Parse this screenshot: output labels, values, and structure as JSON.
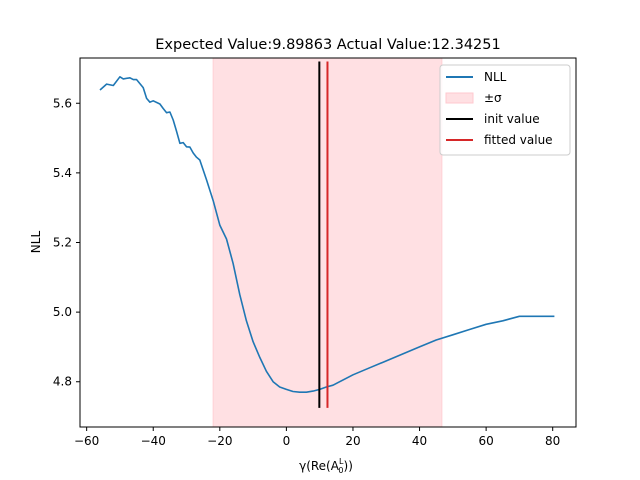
{
  "chart_data": {
    "type": "line",
    "title": "Expected Value:9.89863 Actual Value:12.34251",
    "xlabel": "γ(Re(A",
    "xlabel_sub": "0",
    "xlabel_sup": "L",
    "xlabel_tail": "))",
    "ylabel": "NLL",
    "xlim": [
      -62,
      87
    ],
    "ylim": [
      4.67,
      5.73
    ],
    "xticks": [
      -60,
      -40,
      -20,
      0,
      20,
      40,
      60,
      80
    ],
    "xtick_labels": [
      "−60",
      "−40",
      "−20",
      "0",
      "20",
      "40",
      "60",
      "80"
    ],
    "yticks": [
      4.8,
      5.0,
      5.2,
      5.4,
      5.6
    ],
    "ytick_labels": [
      "4.8",
      "5.0",
      "5.2",
      "5.4",
      "5.6"
    ],
    "sigma_band": {
      "x0": -22,
      "x1": 46.7
    },
    "init_value": 9.89863,
    "fitted_value": 12.34251,
    "vline_range": [
      4.725,
      5.72
    ],
    "series": [
      {
        "name": "NLL",
        "color": "#1f77b4",
        "x": [
          -56,
          -54,
          -52,
          -50,
          -49,
          -47,
          -46,
          -45,
          -43,
          -42,
          -41,
          -40,
          -38,
          -37,
          -36,
          -35,
          -34,
          -33,
          -32,
          -31,
          -30,
          -29,
          -28,
          -27,
          -26,
          -24,
          -22,
          -20,
          -18,
          -16,
          -14,
          -12,
          -10,
          -8,
          -6,
          -4,
          -2,
          0,
          2,
          4,
          6,
          8,
          10,
          12,
          14,
          16,
          20,
          25,
          30,
          35,
          40,
          45,
          50,
          55,
          60,
          65,
          70,
          75,
          80.5
        ],
        "y": [
          5.638,
          5.655,
          5.651,
          5.676,
          5.67,
          5.673,
          5.668,
          5.668,
          5.645,
          5.614,
          5.603,
          5.607,
          5.598,
          5.585,
          5.573,
          5.575,
          5.552,
          5.52,
          5.485,
          5.487,
          5.475,
          5.474,
          5.457,
          5.445,
          5.437,
          5.38,
          5.32,
          5.25,
          5.21,
          5.14,
          5.05,
          4.975,
          4.915,
          4.87,
          4.83,
          4.8,
          4.785,
          4.778,
          4.772,
          4.77,
          4.77,
          4.773,
          4.778,
          4.785,
          4.79,
          4.8,
          4.82,
          4.84,
          4.86,
          4.88,
          4.9,
          4.92,
          4.935,
          4.95,
          4.965,
          4.975,
          4.988,
          4.988,
          4.988
        ]
      }
    ],
    "legend": {
      "placement": "top-right",
      "entries": [
        {
          "label": "NLL",
          "kind": "line",
          "color": "#1f77b4"
        },
        {
          "label": "±σ",
          "kind": "patch",
          "color": "#ffe0e3"
        },
        {
          "label": "init value",
          "kind": "line",
          "color": "#000000"
        },
        {
          "label": "fitted value",
          "kind": "line",
          "color": "#d62728"
        }
      ]
    },
    "grid": false
  }
}
